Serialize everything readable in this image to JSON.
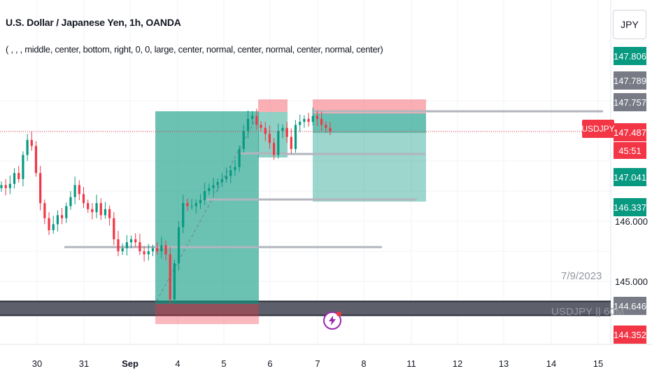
{
  "header": {
    "title": "U.S. Dollar / Japanese Yen, 1h, OANDA",
    "indicator_args": "( , , , middle, center, bottom, right, 0, 0, large, center, normal, center, normal, center, normal, center)"
  },
  "currency_button": "JPY",
  "price_scale": {
    "labels": [
      {
        "text": "147.806",
        "bg": "#089981",
        "color": "#ffffff"
      },
      {
        "text": "147.789",
        "bg": "#787b86",
        "color": "#ffffff"
      },
      {
        "text": "147.757",
        "bg": "#787b86",
        "color": "#ffffff"
      },
      {
        "text": "147.487",
        "bg": "#f23645",
        "color": "#ffffff"
      },
      {
        "text": "45:51",
        "bg": "#f23645",
        "color": "#ffffff"
      },
      {
        "text": "147.041",
        "bg": "#089981",
        "color": "#ffffff"
      },
      {
        "text": "146.337",
        "bg": "#089981",
        "color": "#ffffff"
      },
      {
        "text": "144.646",
        "bg": "#787b86",
        "color": "#ffffff"
      },
      {
        "text": "144.352",
        "bg": "#f23645",
        "color": "#ffffff"
      }
    ],
    "plain": [
      "146.000",
      "145.000"
    ]
  },
  "symbol_label": "USDJPY",
  "annotations": {
    "date": "7/9/2023",
    "watermark": "USDJPY || 60M"
  },
  "colors": {
    "up": "#089981",
    "down": "#f23645",
    "grid": "#f0f3fa",
    "level_line": "#b2b5be",
    "gray_zone": "#5d606b"
  },
  "chart_data": {
    "type": "candlestick",
    "symbol": "USDJPY",
    "interval": "1h",
    "x_ticks": [
      "30",
      "31",
      "Sep",
      "4",
      "5",
      "6",
      "7",
      "8",
      "11",
      "12",
      "13",
      "14",
      "15"
    ],
    "ylim": [
      143.4,
      148.2
    ],
    "current_price": 147.487,
    "close_path": [
      [
        0,
        146.6
      ],
      [
        1,
        146.55
      ],
      [
        2,
        146.62
      ],
      [
        3,
        146.8
      ],
      [
        4,
        146.7
      ],
      [
        5,
        147.1
      ],
      [
        6,
        147.35
      ],
      [
        7,
        147.25
      ],
      [
        8,
        146.8
      ],
      [
        9,
        146.3
      ],
      [
        10,
        146.05
      ],
      [
        11,
        145.85
      ],
      [
        12,
        145.95
      ],
      [
        13,
        146.1
      ],
      [
        14,
        146.05
      ],
      [
        15,
        146.25
      ],
      [
        16,
        146.4
      ],
      [
        17,
        146.6
      ],
      [
        18,
        146.45
      ],
      [
        19,
        146.3
      ],
      [
        20,
        146.2
      ],
      [
        21,
        146.15
      ],
      [
        22,
        146.3
      ],
      [
        23,
        146.1
      ],
      [
        24,
        146.2
      ],
      [
        25,
        146.05
      ],
      [
        26,
        145.7
      ],
      [
        27,
        145.5
      ],
      [
        28,
        145.55
      ],
      [
        29,
        145.65
      ],
      [
        30,
        145.7
      ],
      [
        31,
        145.65
      ],
      [
        32,
        145.5
      ],
      [
        33,
        145.45
      ],
      [
        34,
        145.5
      ],
      [
        35,
        145.55
      ],
      [
        36,
        145.5
      ],
      [
        37,
        145.6
      ],
      [
        38,
        145.45
      ],
      [
        39,
        144.7
      ],
      [
        40,
        145.3
      ],
      [
        41,
        145.9
      ],
      [
        42,
        146.3
      ],
      [
        43,
        146.25
      ],
      [
        44,
        146.25
      ],
      [
        45,
        146.3
      ],
      [
        46,
        146.35
      ],
      [
        47,
        146.5
      ],
      [
        48,
        146.55
      ],
      [
        49,
        146.6
      ],
      [
        50,
        146.65
      ],
      [
        51,
        146.7
      ],
      [
        52,
        146.75
      ],
      [
        53,
        146.85
      ],
      [
        54,
        146.9
      ],
      [
        55,
        147.2
      ],
      [
        56,
        147.5
      ],
      [
        57,
        147.7
      ],
      [
        58,
        147.75
      ],
      [
        59,
        147.6
      ],
      [
        60,
        147.55
      ],
      [
        61,
        147.45
      ],
      [
        62,
        147.3
      ],
      [
        63,
        147.1
      ],
      [
        64,
        147.5
      ],
      [
        65,
        147.55
      ],
      [
        66,
        147.4
      ],
      [
        67,
        147.2
      ],
      [
        68,
        147.6
      ],
      [
        69,
        147.65
      ],
      [
        70,
        147.7
      ],
      [
        71,
        147.65
      ],
      [
        72,
        147.75
      ],
      [
        73,
        147.7
      ],
      [
        74,
        147.6
      ],
      [
        75,
        147.55
      ],
      [
        76,
        147.49
      ]
    ],
    "position_boxes": [
      {
        "name": "long-position-1",
        "entry": 147.75,
        "target": 144.646,
        "stop": 144.352
      },
      {
        "name": "long-position-2",
        "entry": 147.757,
        "target": 146.337,
        "stop": 147.806
      }
    ],
    "horizontal_levels": [
      147.757,
      147.041,
      146.337,
      145.85,
      144.646
    ]
  }
}
